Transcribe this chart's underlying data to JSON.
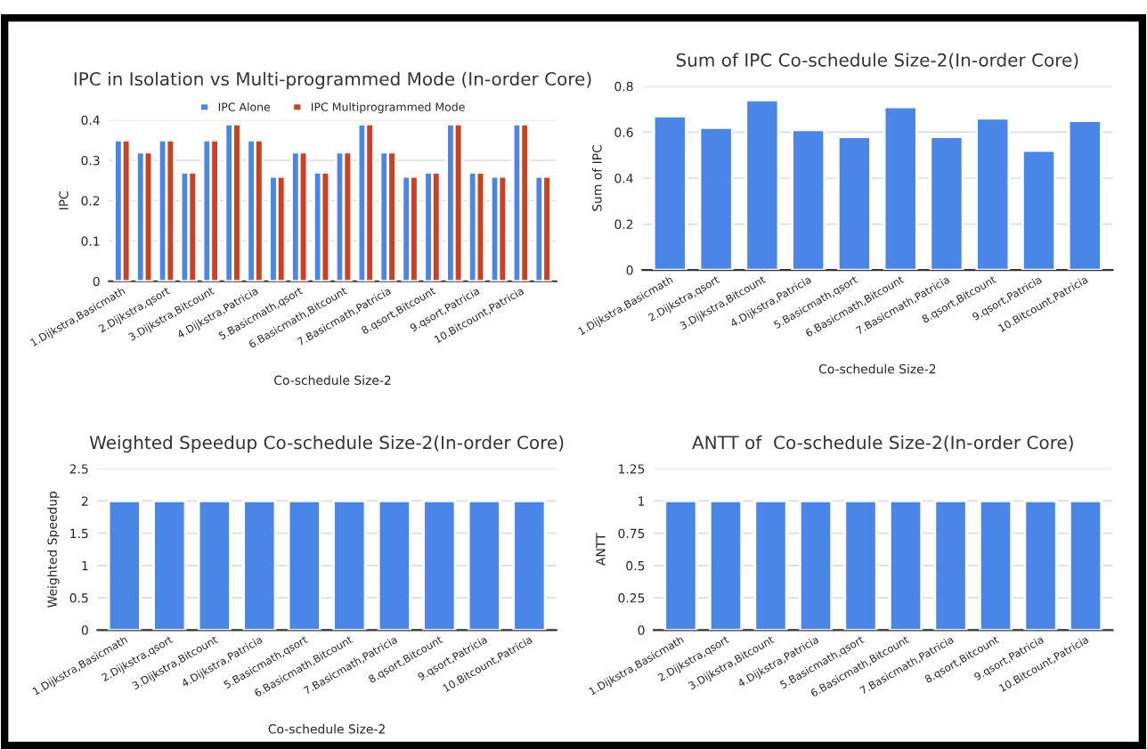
{
  "chart_data": [
    {
      "type": "bar",
      "title": "IPC in Isolation vs Multi-programmed Mode (In-order Core)",
      "xlabel": "Co-schedule Size-2",
      "ylabel": "IPC",
      "categories": [
        "1.Dijkstra,Basicmath",
        null,
        "2.Dijkstra,qsort",
        null,
        "3.Dijkstra,Bitcount",
        null,
        "4.Dijkstra,Patricia",
        null,
        "5.Basicmath,qsort",
        null,
        "6.Basicmath,Bitcount",
        null,
        "7.Basicmath,Patricia",
        null,
        "8.qsort,Bitcount",
        null,
        "9.qsort,Patricia",
        null,
        "10.Bitcount,Patricia",
        null
      ],
      "series": [
        {
          "name": "IPC Alone",
          "color": "#4a86e8",
          "values": [
            0.35,
            0.32,
            0.35,
            0.27,
            0.35,
            0.39,
            0.35,
            0.26,
            0.32,
            0.27,
            0.32,
            0.39,
            0.32,
            0.26,
            0.27,
            0.39,
            0.27,
            0.26,
            0.39,
            0.26
          ]
        },
        {
          "name": "IPC Multiprogrammed Mode",
          "color": "#cc4125",
          "values": [
            0.35,
            0.32,
            0.35,
            0.27,
            0.35,
            0.39,
            0.35,
            0.26,
            0.32,
            0.27,
            0.32,
            0.39,
            0.32,
            0.26,
            0.27,
            0.39,
            0.27,
            0.26,
            0.39,
            0.26
          ]
        }
      ],
      "ylim": [
        0,
        0.4
      ],
      "yticks": [
        0,
        0.1,
        0.2,
        0.3,
        0.4
      ],
      "grid": "y",
      "legend": "top"
    },
    {
      "type": "bar",
      "title": "Sum of IPC Co-schedule Size-2(In-order Core)",
      "xlabel": "Co-schedule Size-2",
      "ylabel": "Sum of IPC",
      "categories": [
        "1.Dijkstra,Basicmath",
        "2.Dijkstra,qsort",
        "3.Dijkstra,Bitcount",
        "4.Dijkstra,Patricia",
        "5.Basicmath,qsort",
        "6.Basicmath,Bitcount",
        "7.Basicmath,Patricia",
        "8.qsort,Bitcount",
        "9.qsort,Patricia",
        "10.Bitcount,Patricia"
      ],
      "series": [
        {
          "color": "#4a86e8",
          "values": [
            0.67,
            0.62,
            0.74,
            0.61,
            0.58,
            0.71,
            0.58,
            0.66,
            0.52,
            0.65
          ]
        }
      ],
      "ylim": [
        0,
        0.8
      ],
      "yticks": [
        0,
        0.2,
        0.4,
        0.6,
        0.8
      ],
      "grid": "y"
    },
    {
      "type": "bar",
      "title": "Weighted Speedup Co-schedule Size-2(In-order Core)",
      "xlabel": "Co-schedule Size-2",
      "ylabel": "Weighted Speedup",
      "categories": [
        "1.Dijkstra,Basicmath",
        "2.Dijkstra,qsort",
        "3.Dijkstra,Bitcount",
        "4.Dijkstra,Patricia",
        "5.Basicmath,qsort",
        "6.Basicmath,Bitcount",
        "7.Basicmath,Patricia",
        "8.qsort,Bitcount",
        "9.qsort,Patricia",
        "10.Bitcount,Patricia"
      ],
      "series": [
        {
          "color": "#4a86e8",
          "values": [
            2,
            2,
            2,
            2,
            2,
            2,
            2,
            2,
            2,
            2
          ]
        }
      ],
      "ylim": [
        0,
        2.5
      ],
      "yticks": [
        0,
        0.5,
        1,
        1.5,
        2,
        2.5
      ],
      "grid": "y"
    },
    {
      "type": "bar",
      "title": "ANTT of  Co-schedule Size-2(In-order Core)",
      "ylabel": "ANTT",
      "categories": [
        "1.Dijkstra,Basicmath",
        "2.Dijkstra,qsort",
        "3.Dijkstra,Bitcount",
        "4.Dijkstra,Patricia",
        "5.Basicmath,qsort",
        "6.Basicmath,Bitcount",
        "7.Basicmath,Patricia",
        "8.qsort,Bitcount",
        "9.qsort,Patricia",
        "10.Bitcount,Patricia"
      ],
      "series": [
        {
          "color": "#4a86e8",
          "values": [
            1,
            1,
            1,
            1,
            1,
            1,
            1,
            1,
            1,
            1
          ]
        }
      ],
      "ylim": [
        0,
        1.25
      ],
      "yticks": [
        0,
        0.25,
        0.5,
        0.75,
        1,
        1.25
      ],
      "grid": "y"
    }
  ]
}
